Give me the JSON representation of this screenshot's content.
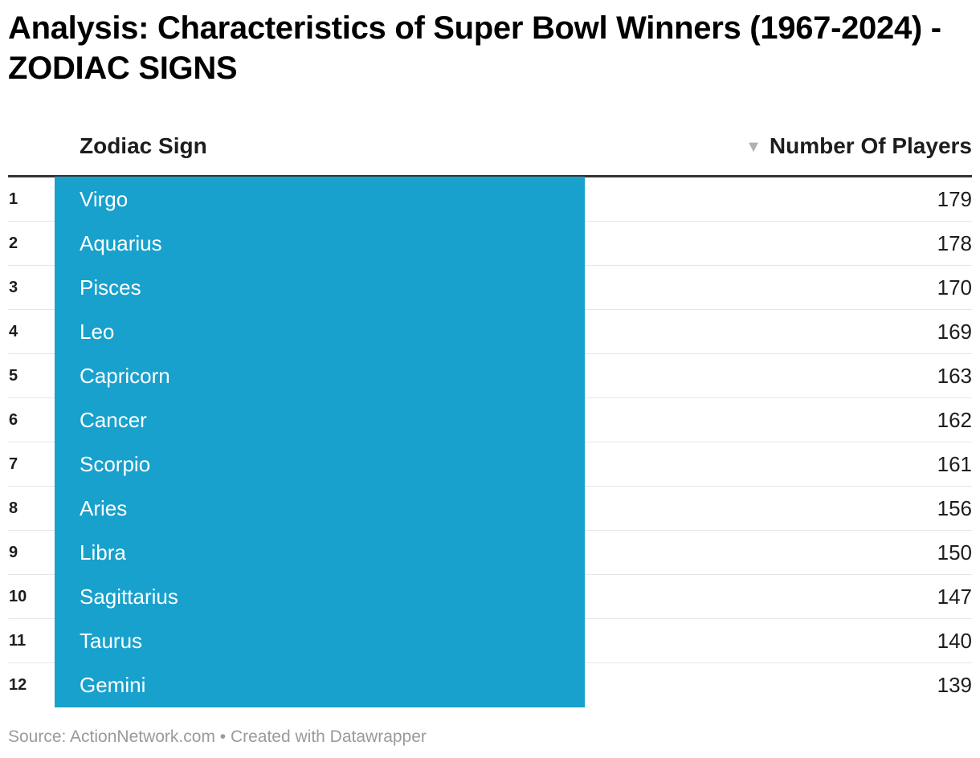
{
  "title": "Analysis: Characteristics of Super Bowl Winners (1967-2024) - ZODIAC SIGNS",
  "header": {
    "col_sign": "Zodiac Sign",
    "col_players": "Number Of Players",
    "sort_icon": "▼"
  },
  "colors": {
    "bar": "#18a1cd",
    "header_rule": "#333333",
    "row_rule": "#e6e6e6"
  },
  "chart_data": {
    "type": "table",
    "columns": [
      "Zodiac Sign",
      "Number Of Players"
    ],
    "sorted_by": "Number Of Players",
    "rows": [
      {
        "rank": "1",
        "sign": "Virgo",
        "players": "179"
      },
      {
        "rank": "2",
        "sign": "Aquarius",
        "players": "178"
      },
      {
        "rank": "3",
        "sign": "Pisces",
        "players": "170"
      },
      {
        "rank": "4",
        "sign": "Leo",
        "players": "169"
      },
      {
        "rank": "5",
        "sign": "Capricorn",
        "players": "163"
      },
      {
        "rank": "6",
        "sign": "Cancer",
        "players": "162"
      },
      {
        "rank": "7",
        "sign": "Scorpio",
        "players": "161"
      },
      {
        "rank": "8",
        "sign": "Aries",
        "players": "156"
      },
      {
        "rank": "9",
        "sign": "Libra",
        "players": "150"
      },
      {
        "rank": "10",
        "sign": "Sagittarius",
        "players": "147"
      },
      {
        "rank": "11",
        "sign": "Taurus",
        "players": "140"
      },
      {
        "rank": "12",
        "sign": "Gemini",
        "players": "139"
      }
    ]
  },
  "footer": {
    "text": "Source: ActionNetwork.com • Created with Datawrapper"
  }
}
